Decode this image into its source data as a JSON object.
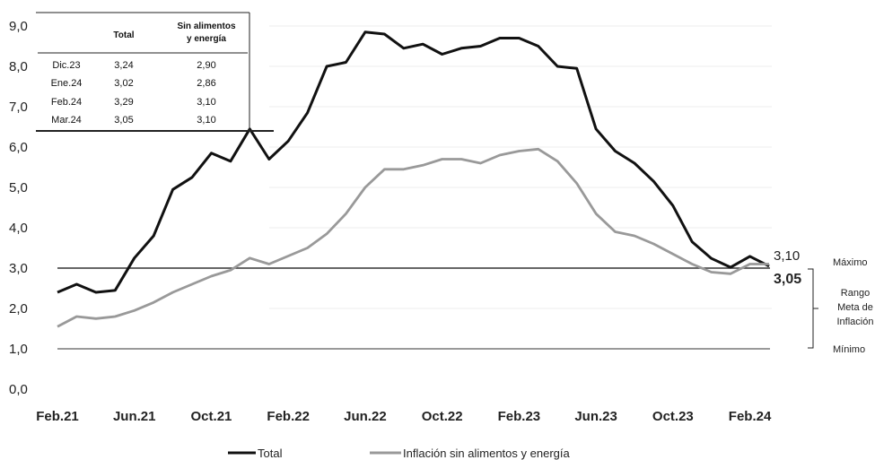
{
  "chart_data": {
    "type": "line",
    "ylim": [
      0,
      9
    ],
    "y_ticks": [
      "0,0",
      "1,0",
      "2,0",
      "3,0",
      "4,0",
      "5,0",
      "6,0",
      "7,0",
      "8,0",
      "9,0"
    ],
    "x_ticks": [
      "Feb.21",
      "Jun.21",
      "Oct.21",
      "Feb.22",
      "Jun.22",
      "Oct.22",
      "Feb.23",
      "Jun.23",
      "Oct.23",
      "Feb.24"
    ],
    "x": [
      "Feb.21",
      "Mar.21",
      "Abr.21",
      "May.21",
      "Jun.21",
      "Jul.21",
      "Ago.21",
      "Sep.21",
      "Oct.21",
      "Nov.21",
      "Dic.21",
      "Ene.22",
      "Feb.22",
      "Mar.22",
      "Abr.22",
      "May.22",
      "Jun.22",
      "Jul.22",
      "Ago.22",
      "Sep.22",
      "Oct.22",
      "Nov.22",
      "Dic.22",
      "Ene.23",
      "Feb.23",
      "Mar.23",
      "Abr.23",
      "May.23",
      "Jun.23",
      "Jul.23",
      "Ago.23",
      "Sep.23",
      "Oct.23",
      "Nov.23",
      "Dic.23",
      "Ene.24",
      "Feb.24",
      "Mar.24"
    ],
    "series": [
      {
        "name": "Total",
        "color": "#111111",
        "values": [
          2.4,
          2.6,
          2.4,
          2.45,
          3.25,
          3.8,
          4.95,
          5.25,
          5.85,
          5.65,
          6.45,
          5.7,
          6.15,
          6.85,
          8.0,
          8.1,
          8.85,
          8.8,
          8.45,
          8.55,
          8.3,
          8.45,
          8.5,
          8.7,
          8.7,
          8.5,
          8.0,
          7.95,
          6.45,
          5.9,
          5.6,
          5.15,
          4.55,
          3.65,
          3.24,
          3.02,
          3.29,
          3.05
        ]
      },
      {
        "name": "Inflación sin alimentos y energía",
        "color": "#999999",
        "values": [
          1.55,
          1.8,
          1.75,
          1.8,
          1.95,
          2.15,
          2.4,
          2.6,
          2.8,
          2.95,
          3.25,
          3.1,
          3.3,
          3.5,
          3.85,
          4.35,
          5.0,
          5.45,
          5.45,
          5.55,
          5.7,
          5.7,
          5.6,
          5.8,
          5.9,
          5.95,
          5.65,
          5.1,
          4.35,
          3.9,
          3.8,
          3.6,
          3.35,
          3.1,
          2.9,
          2.86,
          3.1,
          3.1
        ]
      }
    ],
    "reference_lines": [
      {
        "y": 3.0,
        "label": "Máximo"
      },
      {
        "y": 1.0,
        "label": "Mínimo"
      }
    ],
    "range_label": [
      "Rango",
      "Meta de",
      "Inflación"
    ],
    "end_labels": {
      "total": "3,05",
      "core": "3,10"
    },
    "table": {
      "headers": [
        "Total",
        "Sin alimentos",
        "y energía"
      ],
      "rows": [
        {
          "label": "Dic.23",
          "total": "3,24",
          "core": "2,90"
        },
        {
          "label": "Ene.24",
          "total": "3,02",
          "core": "2,86"
        },
        {
          "label": "Feb.24",
          "total": "3,29",
          "core": "3,10"
        },
        {
          "label": "Mar.24",
          "total": "3,05",
          "core": "3,10"
        }
      ]
    },
    "legend": {
      "position": "bottom",
      "items": [
        "Total",
        "Inflación sin alimentos y energía"
      ]
    }
  }
}
